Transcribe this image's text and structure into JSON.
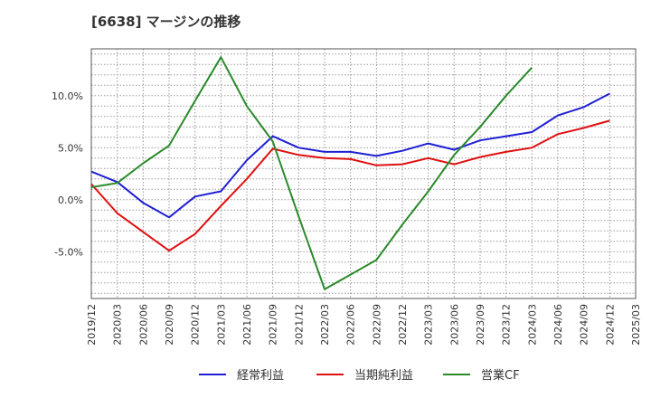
{
  "chart_data": {
    "type": "line",
    "title": "[6638]  マージンの推移",
    "x": [
      "2019/12",
      "2020/03",
      "2020/06",
      "2020/09",
      "2020/12",
      "2021/03",
      "2021/06",
      "2021/09",
      "2021/12",
      "2022/03",
      "2022/06",
      "2022/09",
      "2022/12",
      "2023/03",
      "2023/06",
      "2023/09",
      "2023/12",
      "2024/03",
      "2024/06",
      "2024/09",
      "2024/12",
      "2025/03"
    ],
    "y_ticks": [
      10,
      5,
      0,
      -5
    ],
    "y_tick_labels": [
      "10.0%",
      "5.0%",
      "0.0%",
      "-5.0%"
    ],
    "ylim": [
      -9.5,
      14.5
    ],
    "grid": true,
    "legend_position": "bottom",
    "series": [
      {
        "name": "経常利益",
        "color": "#1f1fd4",
        "values": [
          2.7,
          1.7,
          -0.3,
          -1.7,
          0.3,
          0.8,
          3.8,
          6.1,
          5.0,
          4.6,
          4.6,
          4.2,
          4.7,
          5.4,
          4.8,
          5.7,
          6.1,
          6.5,
          8.1,
          8.9,
          10.2,
          null
        ]
      },
      {
        "name": "当期純利益",
        "color": "#e01010",
        "values": [
          1.5,
          -1.3,
          -3.1,
          -4.9,
          -3.3,
          -0.6,
          2.0,
          4.9,
          4.3,
          4.0,
          3.9,
          3.3,
          3.4,
          4.0,
          3.4,
          4.1,
          4.6,
          5.0,
          6.3,
          6.9,
          7.6,
          null
        ]
      },
      {
        "name": "営業CF",
        "color": "#2a8a2a",
        "values": [
          1.2,
          1.6,
          3.5,
          5.2,
          9.5,
          13.7,
          9.0,
          5.6,
          -1.6,
          -8.6,
          -7.2,
          -5.8,
          -2.4,
          0.8,
          4.3,
          7.0,
          10.0,
          12.7,
          null,
          null,
          null,
          null
        ]
      }
    ]
  }
}
